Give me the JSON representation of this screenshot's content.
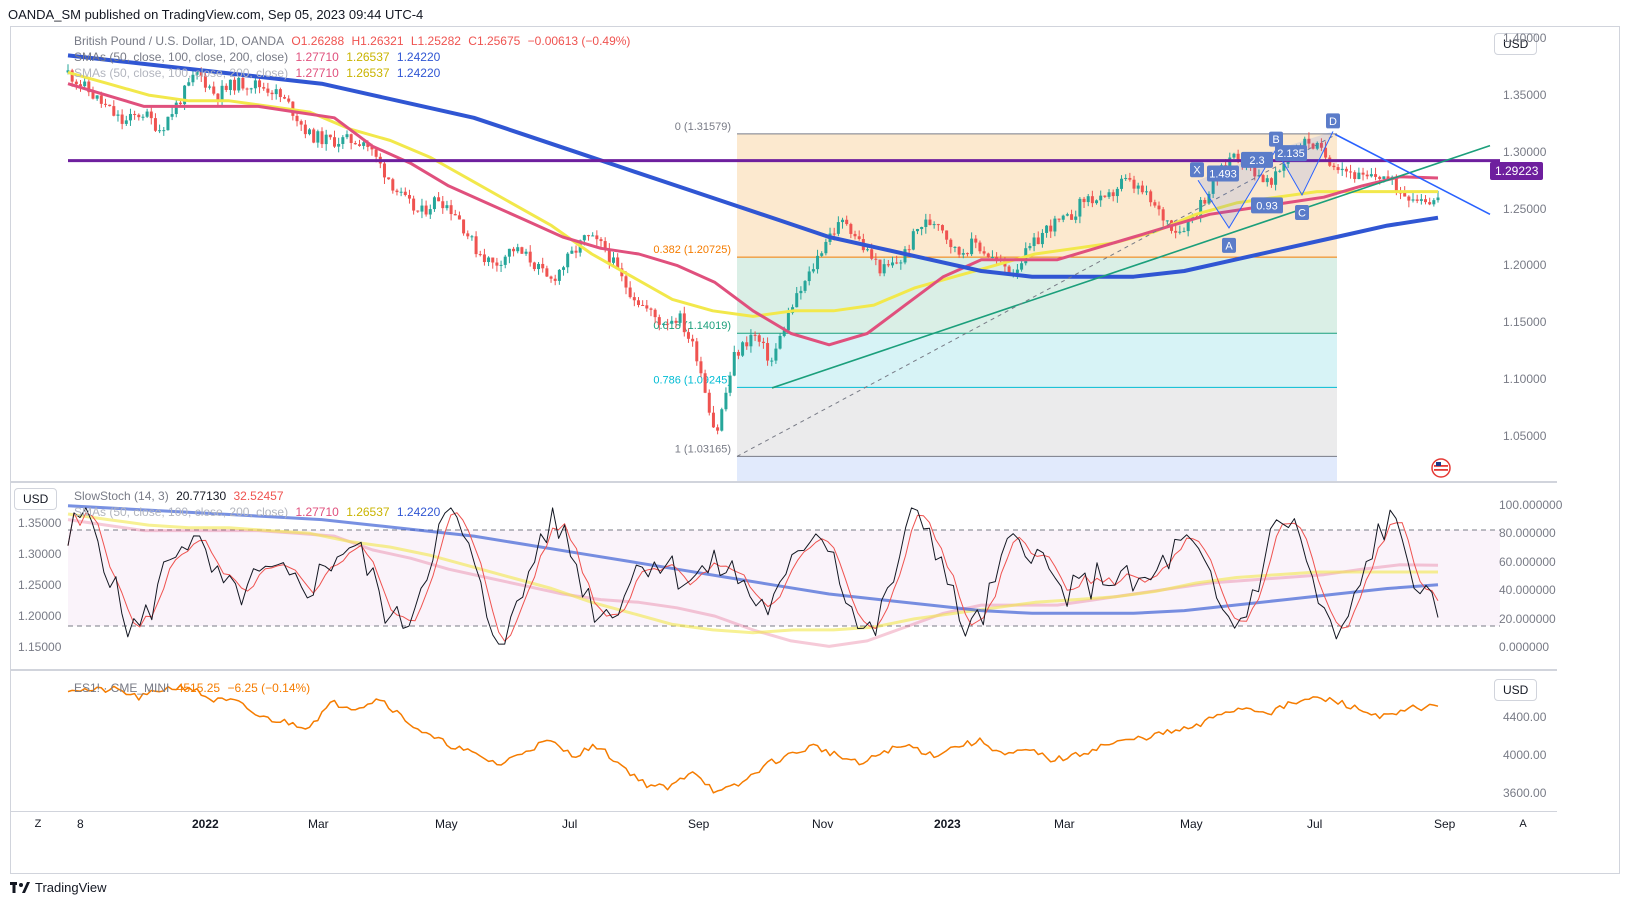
{
  "publish_line": "OANDA_SM published on TradingView.com, Sep 05, 2023 09:44 UTC-4",
  "main_legend": {
    "symbol": "British Pound / U.S. Dollar, 1D, OANDA",
    "o": "O1.26288",
    "h": "H1.26321",
    "l": "L1.25282",
    "c": "C1.25675",
    "change": "−0.00613 (−0.49%)",
    "sma_label": "SMAs (50, close, 100, close, 200, close)",
    "sma50": "1.27710",
    "sma100": "1.26537",
    "sma200": "1.24220"
  },
  "stoch_legend": {
    "label": "SlowStoch (14, 3)",
    "k": "20.77130",
    "d": "32.52457",
    "sma_label": "SMAs (50, close, 100, close, 200, close)",
    "sma50": "1.27710",
    "sma100": "1.26537",
    "sma200": "1.24220"
  },
  "es_legend": {
    "label": "ES1! · CME_MINI",
    "value": "4515.25",
    "change": "−6.25 (−0.14%)"
  },
  "currency": "USD",
  "colors": {
    "up": "#26a69a",
    "down": "#ef5350",
    "price": "#131722",
    "sma50": "#e0507d",
    "sma100": "#f2e84b",
    "sma200": "#3056d3",
    "resistance": "#6e1f9e",
    "trend_up": "#1b9f7b",
    "trend_down": "#2962ff",
    "stoch_k": "#131722",
    "stoch_d": "#ef5350",
    "es": "#f57c00",
    "accent": "#2962ff"
  },
  "time_labels": [
    "8",
    "2022",
    "Mar",
    "May",
    "Jul",
    "Sep",
    "Nov",
    "2023",
    "Mar",
    "May",
    "Jul",
    "Sep"
  ],
  "corner_left": "Z",
  "corner_right": "A",
  "brand": "TradingView",
  "chart_data": [
    {
      "type": "candlestick",
      "title": "British Pound / U.S. Dollar, 1D, OANDA",
      "y_ticks": [
        "1.40000",
        "1.35000",
        "1.30000",
        "1.25000",
        "1.20000",
        "1.15000",
        "1.10000",
        "1.05000"
      ],
      "ylim": [
        1.01,
        1.41
      ],
      "current_price_label": "1.29223",
      "fib_levels": [
        {
          "label": "0 (1.31579)",
          "value": 1.31579
        },
        {
          "label": "0.382 (1.20725)",
          "value": 1.20725
        },
        {
          "label": "0.618 (1.14019)",
          "value": 1.14019
        },
        {
          "label": "0.786 (1.09245)",
          "value": 1.09245
        },
        {
          "label": "1 (1.03165)",
          "value": 1.03165
        }
      ],
      "harmonic_labels": [
        "X",
        "A",
        "B",
        "C",
        "D"
      ],
      "ratios": [
        "1.493",
        "2.3",
        "2.135",
        "0.93"
      ],
      "path": [
        1.37,
        1.355,
        1.34,
        1.325,
        1.335,
        1.32,
        1.345,
        1.37,
        1.35,
        1.36,
        1.36,
        1.355,
        1.34,
        1.315,
        1.31,
        1.31,
        1.31,
        1.285,
        1.26,
        1.245,
        1.26,
        1.245,
        1.215,
        1.2,
        1.215,
        1.205,
        1.185,
        1.205,
        1.225,
        1.215,
        1.185,
        1.165,
        1.15,
        1.155,
        1.12,
        1.05,
        1.12,
        1.14,
        1.115,
        1.16,
        1.19,
        1.225,
        1.24,
        1.215,
        1.195,
        1.205,
        1.235,
        1.24,
        1.21,
        1.22,
        1.205,
        1.195,
        1.215,
        1.235,
        1.24,
        1.26,
        1.255,
        1.275,
        1.265,
        1.245,
        1.23,
        1.25,
        1.275,
        1.3,
        1.285,
        1.27,
        1.3,
        1.31,
        1.295,
        1.285,
        1.275,
        1.28,
        1.265,
        1.26,
        1.257
      ],
      "sma50": [
        1.36,
        1.35,
        1.34,
        1.34,
        1.34,
        1.34,
        1.335,
        1.33,
        1.305,
        1.29,
        1.27,
        1.255,
        1.24,
        1.225,
        1.215,
        1.21,
        1.2,
        1.185,
        1.16,
        1.14,
        1.13,
        1.14,
        1.165,
        1.19,
        1.205,
        1.205,
        1.205,
        1.215,
        1.225,
        1.235,
        1.245,
        1.25,
        1.255,
        1.26,
        1.27,
        1.278,
        1.277
      ],
      "sma100": [
        1.37,
        1.36,
        1.35,
        1.345,
        1.345,
        1.34,
        1.335,
        1.32,
        1.31,
        1.295,
        1.275,
        1.255,
        1.235,
        1.21,
        1.19,
        1.17,
        1.16,
        1.155,
        1.16,
        1.16,
        1.165,
        1.18,
        1.19,
        1.2,
        1.21,
        1.215,
        1.22,
        1.23,
        1.245,
        1.255,
        1.26,
        1.265,
        1.265,
        1.265,
        1.265
      ],
      "sma200": [
        1.385,
        1.38,
        1.375,
        1.37,
        1.365,
        1.36,
        1.35,
        1.34,
        1.33,
        1.315,
        1.3,
        1.285,
        1.27,
        1.255,
        1.24,
        1.225,
        1.215,
        1.205,
        1.195,
        1.19,
        1.19,
        1.19,
        1.195,
        1.205,
        1.215,
        1.225,
        1.235,
        1.242
      ],
      "series": [
        {
          "name": "SMA 50",
          "value": 1.2771
        },
        {
          "name": "SMA 100",
          "value": 1.26537
        },
        {
          "name": "SMA 200",
          "value": 1.2422
        }
      ]
    },
    {
      "type": "line",
      "title": "SlowStoch (14, 3)",
      "y_ticks": [
        "100.000000",
        "80.000000",
        "60.000000",
        "40.000000",
        "20.000000",
        "0.000000"
      ],
      "ylim": [
        -5,
        105
      ],
      "bands": [
        20,
        80
      ],
      "left_ticks": [
        "1.35000",
        "1.30000",
        "1.25000",
        "1.20000",
        "1.15000"
      ],
      "series": [
        {
          "name": "%K",
          "value": 20.7713
        },
        {
          "name": "%D",
          "value": 32.52457
        }
      ]
    },
    {
      "type": "line",
      "title": "ES1! · CME_MINI",
      "y_ticks": [
        "4400.00",
        "4000.00",
        "3600.00"
      ],
      "ylim": [
        3500,
        4800
      ],
      "series": [
        {
          "name": "ES1!",
          "values": [
            4700,
            4680,
            4690,
            4600,
            4700,
            4720,
            4580,
            4560,
            4400,
            4350,
            4300,
            4550,
            4500,
            4600,
            4380,
            4200,
            4100,
            4000,
            3900,
            4050,
            4150,
            4000,
            4100,
            3900,
            3700,
            3650,
            3850,
            3600,
            3700,
            3900,
            4000,
            4100,
            4000,
            3900,
            4050,
            4100,
            4000,
            4100,
            4150,
            4000,
            4050,
            3950,
            4000,
            4100,
            4150,
            4200,
            4250,
            4300,
            4450,
            4500,
            4450,
            4550,
            4600,
            4550,
            4450,
            4400,
            4500,
            4515
          ]
        }
      ]
    }
  ]
}
